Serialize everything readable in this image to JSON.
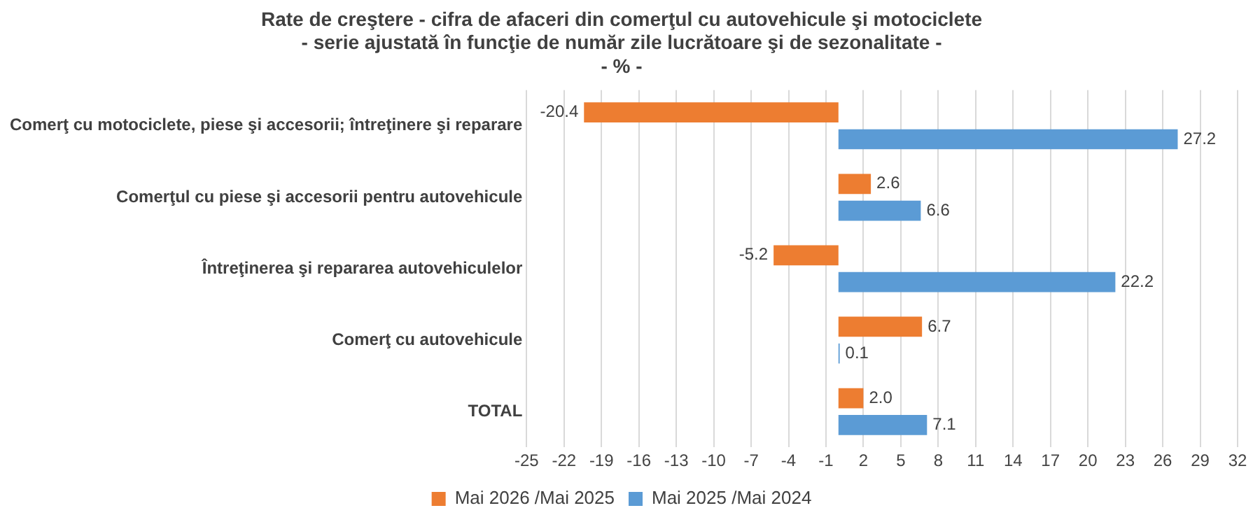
{
  "chart_data": {
    "type": "bar",
    "orientation": "horizontal",
    "title": "Rate de creştere - cifra de afaceri din comerţul cu autovehicule şi motociclete\n- serie ajustată în funcţie de număr zile lucrătoare şi de sezonalitate -\n- % -",
    "categories": [
      "Comerţ cu motociclete, piese şi accesorii; întreţinere şi reparare",
      "Comerţul cu piese şi accesorii pentru autovehicule",
      "Întreţinerea şi repararea autovehiculelor",
      "Comerţ cu autovehicule",
      "TOTAL"
    ],
    "series": [
      {
        "name": "Mai 2026 /Mai 2025",
        "color": "#ed7d31",
        "values": [
          -20.4,
          2.6,
          -5.2,
          6.7,
          2.0
        ],
        "value_labels": [
          "-20.4",
          "2.6",
          "-5.2",
          "6.7",
          "2.0"
        ]
      },
      {
        "name": "Mai 2025 /Mai 2024",
        "color": "#5b9bd5",
        "values": [
          27.2,
          6.6,
          22.2,
          0.1,
          7.1
        ],
        "value_labels": [
          "27.2",
          "6.6",
          "22.2",
          "0.1",
          "7.1"
        ]
      }
    ],
    "xlim": [
      -25,
      32
    ],
    "xticks": [
      -25,
      -22,
      -19,
      -16,
      -13,
      -10,
      -7,
      -4,
      -1,
      2,
      5,
      8,
      11,
      14,
      17,
      20,
      23,
      26,
      29,
      32
    ],
    "grid": "x",
    "legend": "bottom"
  }
}
